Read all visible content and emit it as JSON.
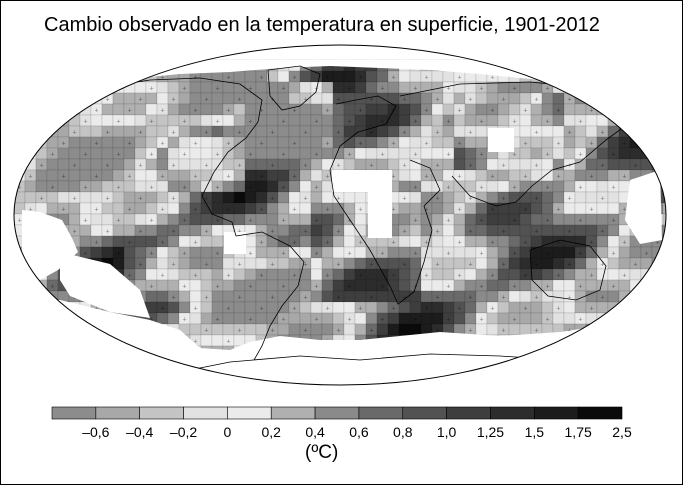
{
  "title": "Cambio observado en la temperatura en superficie, 1901-2012",
  "legend": {
    "unit": "(ºC)",
    "tick_labels": [
      "–0,6",
      "–0,4",
      "–0,2",
      "0",
      "0,2",
      "0,4",
      "0,6",
      "0,8",
      "1,0",
      "1,25",
      "1,5",
      "1,75",
      "2,5"
    ],
    "swatch_colors": [
      "#8c8c8c",
      "#a8a8a8",
      "#c4c4c4",
      "#e2e2e2",
      "#ebebeb",
      "#b0b0b0",
      "#8a8a8a",
      "#6a6a6a",
      "#525252",
      "#3e3e3e",
      "#2c2c2c",
      "#1c1c1c",
      "#0a0a0a"
    ]
  },
  "colors": {
    "no_data": "#ffffff",
    "coastline": "#000000"
  }
}
